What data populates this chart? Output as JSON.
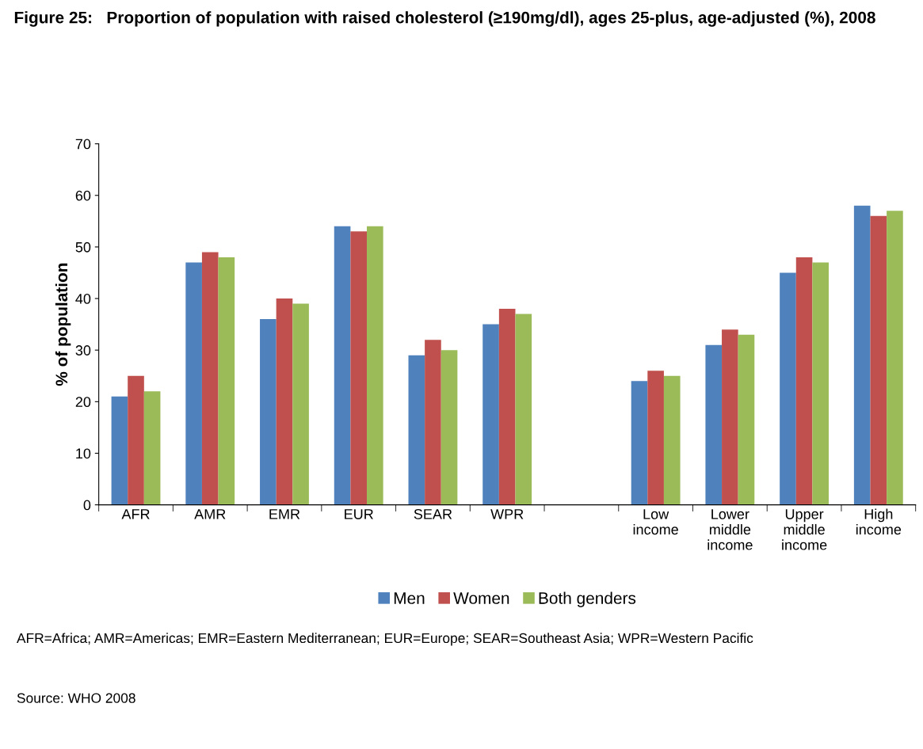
{
  "chart_data": {
    "type": "bar",
    "title": "Figure 25:   Proportion of population with raised cholesterol (≥190mg/dl), ages 25-plus, age-adjusted (%), 2008",
    "ylabel": "% of population",
    "categories": [
      "AFR",
      "AMR",
      "EMR",
      "EUR",
      "SEAR",
      "WPR",
      null,
      "Low income",
      "Lower middle income",
      "Upper middle income",
      "High income"
    ],
    "series": [
      {
        "name": "Men",
        "color": "#4f81bd",
        "values": [
          21,
          47,
          36,
          54,
          29,
          35,
          null,
          24,
          31,
          45,
          58
        ]
      },
      {
        "name": "Women",
        "color": "#c0504d",
        "values": [
          25,
          49,
          40,
          53,
          32,
          38,
          null,
          26,
          34,
          48,
          56
        ]
      },
      {
        "name": "Both genders",
        "color": "#9bbb59",
        "values": [
          22,
          48,
          39,
          54,
          30,
          37,
          null,
          25,
          33,
          47,
          57
        ]
      }
    ],
    "ylim": [
      0,
      70
    ],
    "yticks": [
      0,
      10,
      20,
      30,
      40,
      50,
      60,
      70
    ],
    "grid": false,
    "legend": "bottom",
    "annotations": [
      "AFR=Africa; AMR=Americas; EMR=Eastern Mediterranean; EUR=Europe; SEAR=Southeast Asia; WPR=Western Pacific",
      "Source: WHO 2008"
    ]
  }
}
